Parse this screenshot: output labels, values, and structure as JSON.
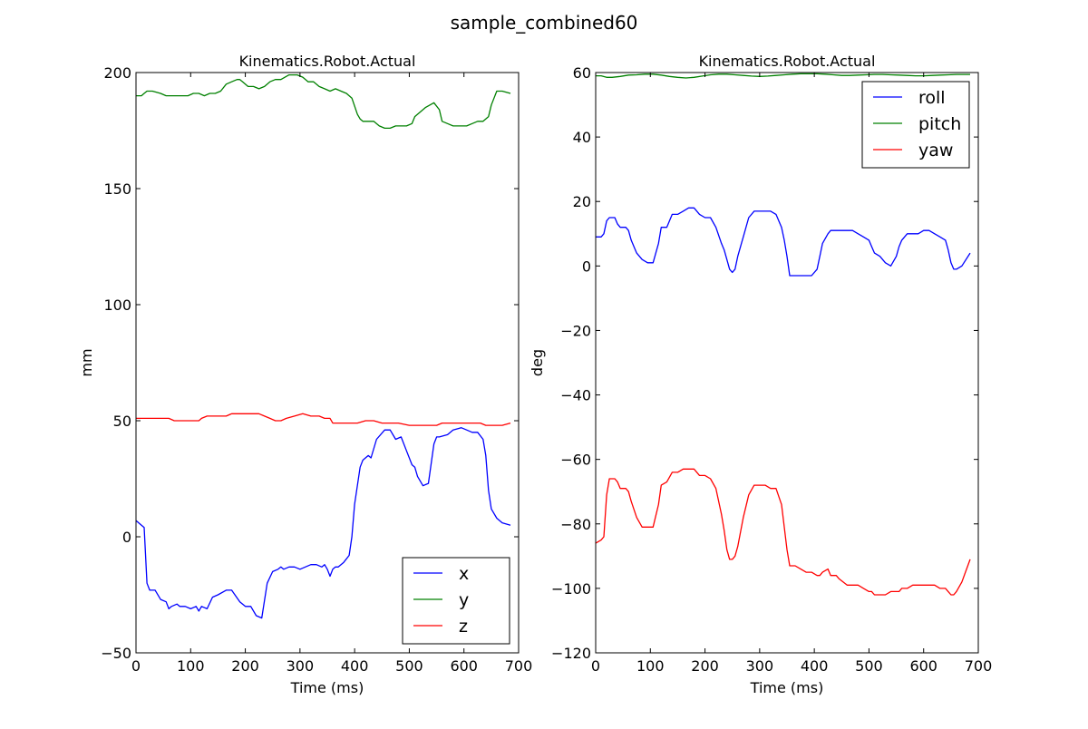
{
  "figure": {
    "suptitle": "sample_combined60"
  },
  "chart_data": [
    {
      "type": "line",
      "title": "Kinematics.Robot.Actual",
      "xlabel": "Time (ms)",
      "ylabel": "mm",
      "xlim": [
        0,
        700
      ],
      "ylim": [
        -50,
        200
      ],
      "xticks": [
        0,
        100,
        200,
        300,
        400,
        500,
        600,
        700
      ],
      "yticks": [
        -50,
        0,
        50,
        100,
        150,
        200
      ],
      "xtick_labels": [
        "0",
        "100",
        "200",
        "300",
        "400",
        "500",
        "600",
        "700"
      ],
      "ytick_labels": [
        "−50",
        "0",
        "50",
        "100",
        "150",
        "200"
      ],
      "grid": false,
      "legend_position": "lower-right",
      "series": [
        {
          "name": "x",
          "color": "#0000ff",
          "x": [
            0,
            10,
            15,
            20,
            25,
            35,
            45,
            55,
            60,
            65,
            75,
            80,
            90,
            100,
            110,
            115,
            120,
            130,
            140,
            150,
            165,
            175,
            190,
            200,
            210,
            220,
            230,
            240,
            250,
            260,
            265,
            270,
            280,
            290,
            300,
            320,
            330,
            340,
            345,
            350,
            355,
            360,
            365,
            370,
            380,
            390,
            395,
            400,
            410,
            415,
            425,
            430,
            440,
            455,
            465,
            475,
            485,
            495,
            505,
            510,
            515,
            525,
            535,
            545,
            550,
            555,
            570,
            580,
            595,
            605,
            615,
            625,
            635,
            640,
            645,
            650,
            660,
            670,
            685
          ],
          "y": [
            7,
            5,
            4,
            -20,
            -23,
            -23,
            -27,
            -28,
            -31,
            -30,
            -29,
            -30,
            -30,
            -31,
            -30,
            -32,
            -30,
            -31,
            -26,
            -25,
            -23,
            -23,
            -28,
            -30,
            -30,
            -34,
            -35,
            -20,
            -15,
            -14,
            -13,
            -14,
            -13,
            -13,
            -14,
            -12,
            -12,
            -13,
            -12,
            -14,
            -17,
            -14,
            -13,
            -13,
            -11,
            -8,
            0,
            14,
            30,
            33,
            35,
            34,
            42,
            46,
            46,
            42,
            43,
            37,
            31,
            30,
            26,
            22,
            23,
            40,
            43,
            43,
            44,
            46,
            47,
            46,
            45,
            45,
            42,
            35,
            20,
            12,
            8,
            6,
            5
          ]
        },
        {
          "name": "y",
          "color": "#008000",
          "x": [
            0,
            10,
            15,
            20,
            30,
            45,
            55,
            65,
            75,
            85,
            95,
            105,
            115,
            125,
            135,
            145,
            155,
            165,
            175,
            185,
            190,
            195,
            205,
            215,
            225,
            235,
            245,
            255,
            265,
            280,
            295,
            305,
            315,
            325,
            335,
            345,
            355,
            365,
            375,
            385,
            395,
            405,
            410,
            415,
            425,
            435,
            445,
            455,
            465,
            475,
            485,
            495,
            505,
            510,
            520,
            530,
            545,
            555,
            560,
            570,
            580,
            595,
            605,
            615,
            625,
            635,
            645,
            650,
            660,
            670,
            685
          ],
          "y": [
            190,
            190,
            191,
            192,
            192,
            191,
            190,
            190,
            190,
            190,
            190,
            191,
            191,
            190,
            191,
            191,
            192,
            195,
            196,
            197,
            197,
            196,
            194,
            194,
            193,
            194,
            196,
            197,
            197,
            199,
            199,
            198,
            196,
            196,
            194,
            193,
            192,
            193,
            192,
            191,
            189,
            182,
            180,
            179,
            179,
            179,
            177,
            176,
            176,
            177,
            177,
            177,
            178,
            181,
            183,
            185,
            187,
            184,
            179,
            178,
            177,
            177,
            177,
            178,
            179,
            179,
            181,
            186,
            192,
            192,
            191
          ]
        },
        {
          "name": "z",
          "color": "#ff0000",
          "x": [
            0,
            10,
            20,
            30,
            40,
            50,
            60,
            70,
            80,
            90,
            100,
            110,
            115,
            120,
            130,
            140,
            150,
            165,
            175,
            190,
            200,
            210,
            225,
            235,
            245,
            255,
            265,
            275,
            290,
            305,
            320,
            335,
            345,
            355,
            360,
            375,
            390,
            405,
            420,
            435,
            450,
            465,
            480,
            500,
            510,
            520,
            535,
            550,
            560,
            575,
            590,
            605,
            620,
            630,
            640,
            650,
            660,
            670,
            685
          ],
          "y": [
            51,
            51,
            51,
            51,
            51,
            51,
            51,
            50,
            50,
            50,
            50,
            50,
            50,
            51,
            52,
            52,
            52,
            52,
            53,
            53,
            53,
            53,
            53,
            52,
            51,
            50,
            50,
            51,
            52,
            53,
            52,
            52,
            51,
            51,
            49,
            49,
            49,
            49,
            50,
            50,
            49,
            49,
            49,
            48,
            48,
            48,
            48,
            48,
            49,
            49,
            49,
            49,
            49,
            49,
            48,
            48,
            48,
            48,
            49
          ]
        }
      ]
    },
    {
      "type": "line",
      "title": "Kinematics.Robot.Actual",
      "xlabel": "Time (ms)",
      "ylabel": "deg",
      "xlim": [
        0,
        700
      ],
      "ylim": [
        -120,
        60
      ],
      "xticks": [
        0,
        100,
        200,
        300,
        400,
        500,
        600,
        700
      ],
      "yticks": [
        -120,
        -100,
        -80,
        -60,
        -40,
        -20,
        0,
        20,
        40,
        60
      ],
      "xtick_labels": [
        "0",
        "100",
        "200",
        "300",
        "400",
        "500",
        "600",
        "700"
      ],
      "ytick_labels": [
        "−120",
        "−100",
        "−80",
        "−60",
        "−40",
        "−20",
        "0",
        "20",
        "40",
        "60"
      ],
      "grid": false,
      "legend_position": "upper-right",
      "series": [
        {
          "name": "roll",
          "color": "#0000ff",
          "x": [
            0,
            10,
            15,
            20,
            25,
            35,
            40,
            45,
            55,
            60,
            65,
            75,
            85,
            95,
            105,
            115,
            120,
            130,
            140,
            150,
            160,
            170,
            180,
            190,
            200,
            210,
            220,
            230,
            235,
            240,
            245,
            250,
            255,
            260,
            270,
            280,
            290,
            300,
            310,
            320,
            330,
            340,
            345,
            350,
            355,
            365,
            375,
            385,
            395,
            405,
            410,
            415,
            425,
            430,
            440,
            445,
            460,
            470,
            480,
            490,
            500,
            505,
            510,
            520,
            530,
            540,
            550,
            555,
            560,
            570,
            580,
            590,
            600,
            610,
            620,
            630,
            640,
            645,
            650,
            655,
            660,
            670,
            685
          ],
          "y": [
            9,
            9,
            10,
            14,
            15,
            15,
            13,
            12,
            12,
            11,
            8,
            4,
            2,
            1,
            1,
            7,
            12,
            12,
            16,
            16,
            17,
            18,
            18,
            16,
            15,
            15,
            12,
            7,
            5,
            2,
            -1,
            -2,
            -1,
            3,
            9,
            15,
            17,
            17,
            17,
            17,
            16,
            12,
            8,
            3,
            -3,
            -3,
            -3,
            -3,
            -3,
            -1,
            3,
            7,
            10,
            11,
            11,
            11,
            11,
            11,
            10,
            9,
            8,
            6,
            4,
            3,
            1,
            0,
            3,
            6,
            8,
            10,
            10,
            10,
            11,
            11,
            10,
            9,
            8,
            5,
            1,
            -1,
            -1,
            0,
            4
          ]
        },
        {
          "name": "pitch",
          "color": "#008000",
          "x": [
            0,
            10,
            20,
            30,
            45,
            60,
            75,
            90,
            105,
            120,
            135,
            150,
            165,
            180,
            195,
            210,
            225,
            240,
            255,
            270,
            285,
            300,
            315,
            330,
            345,
            360,
            375,
            390,
            405,
            420,
            435,
            450,
            465,
            480,
            495,
            510,
            525,
            540,
            555,
            570,
            585,
            600,
            615,
            630,
            645,
            660,
            675,
            685
          ],
          "y": [
            59,
            59,
            58.5,
            58.5,
            58.8,
            59.2,
            59.3,
            59.5,
            59.5,
            59.2,
            58.8,
            58.5,
            58.3,
            58.5,
            58.9,
            59.3,
            59.5,
            59.5,
            59.3,
            59.1,
            58.9,
            58.8,
            58.9,
            59.1,
            59.3,
            59.5,
            59.6,
            59.6,
            59.6,
            59.5,
            59.3,
            59.1,
            59.1,
            59.2,
            59.3,
            59.4,
            59.4,
            59.3,
            59.2,
            59.1,
            59,
            59,
            59.1,
            59.2,
            59.3,
            59.4,
            59.4,
            59.4
          ]
        },
        {
          "name": "yaw",
          "color": "#ff0000",
          "x": [
            0,
            10,
            15,
            20,
            25,
            35,
            40,
            45,
            55,
            60,
            65,
            75,
            85,
            95,
            105,
            115,
            120,
            130,
            140,
            150,
            160,
            170,
            180,
            190,
            200,
            210,
            220,
            230,
            235,
            240,
            245,
            250,
            255,
            260,
            270,
            280,
            290,
            300,
            310,
            320,
            330,
            340,
            345,
            350,
            355,
            365,
            375,
            385,
            395,
            405,
            410,
            415,
            425,
            430,
            440,
            445,
            460,
            470,
            480,
            490,
            500,
            505,
            510,
            520,
            530,
            540,
            550,
            555,
            560,
            570,
            580,
            590,
            600,
            610,
            620,
            630,
            640,
            645,
            650,
            655,
            660,
            670,
            685
          ],
          "y": [
            -86,
            -85,
            -84,
            -71,
            -66,
            -66,
            -67,
            -69,
            -69,
            -70,
            -73,
            -78,
            -81,
            -81,
            -81,
            -74,
            -68,
            -67,
            -64,
            -64,
            -63,
            -63,
            -63,
            -65,
            -65,
            -66,
            -69,
            -77,
            -82,
            -88,
            -91,
            -91,
            -90,
            -87,
            -78,
            -71,
            -68,
            -68,
            -68,
            -69,
            -69,
            -74,
            -81,
            -88,
            -93,
            -93,
            -94,
            -95,
            -95,
            -96,
            -96,
            -95,
            -94,
            -96,
            -96,
            -97,
            -99,
            -99,
            -99,
            -100,
            -101,
            -101,
            -102,
            -102,
            -102,
            -101,
            -101,
            -101,
            -100,
            -100,
            -99,
            -99,
            -99,
            -99,
            -99,
            -100,
            -100,
            -101,
            -102,
            -102,
            -101,
            -98,
            -91
          ]
        }
      ]
    }
  ]
}
